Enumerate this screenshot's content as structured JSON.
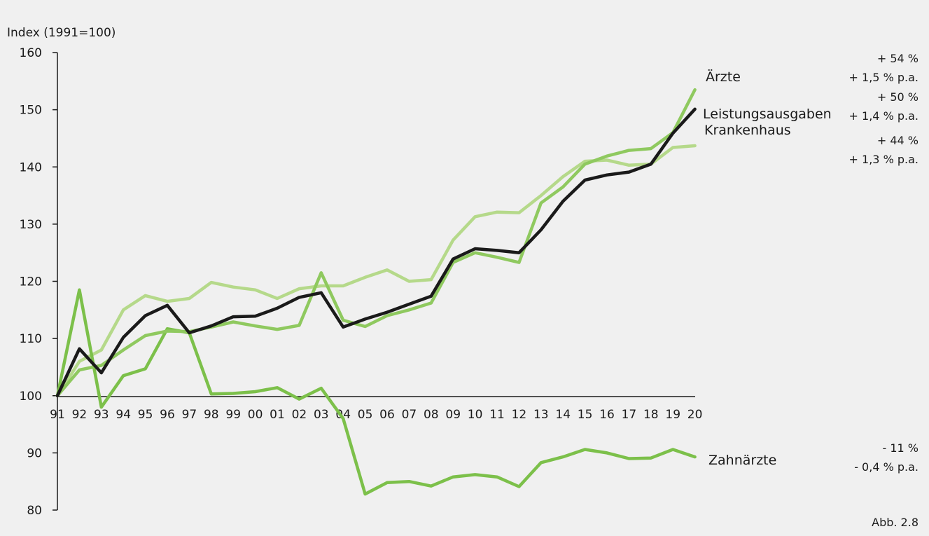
{
  "chart_data": {
    "type": "line",
    "ylabel": "Index (1991=100)",
    "ylim": [
      80,
      160
    ],
    "yticks": [
      80,
      90,
      100,
      110,
      120,
      130,
      140,
      150,
      160
    ],
    "categories": [
      "91",
      "92",
      "93",
      "94",
      "95",
      "96",
      "97",
      "98",
      "99",
      "00",
      "01",
      "02",
      "03",
      "04",
      "05",
      "06",
      "07",
      "08",
      "09",
      "10",
      "11",
      "12",
      "13",
      "14",
      "15",
      "16",
      "17",
      "18",
      "19",
      "20"
    ],
    "series": [
      {
        "name": "Krankenhaus",
        "color": "#b5d98a",
        "values": [
          100,
          106,
          108,
          115,
          117.5,
          116.5,
          117,
          119.8,
          119,
          118.5,
          117,
          118.7,
          119.2,
          119.2,
          120.7,
          122,
          120,
          120.3,
          127.2,
          131.3,
          132.1,
          132,
          135,
          138.3,
          141,
          141.2,
          140.3,
          140.5,
          143.4,
          143.7
        ]
      },
      {
        "name": "Zahnärzte",
        "color": "#7cc04a",
        "values": [
          100,
          118.5,
          98,
          103.5,
          104.7,
          111.7,
          111,
          100.3,
          100.4,
          100.7,
          101.4,
          99.4,
          101.3,
          96,
          82.8,
          84.8,
          85,
          84.2,
          85.8,
          86.2,
          85.8,
          84.1,
          88.3,
          89.3,
          90.6,
          90,
          89,
          89.1,
          90.6,
          89.3
        ]
      },
      {
        "name": "Ärzte",
        "color": "#8fc95f",
        "values": [
          100,
          104.5,
          105.3,
          108,
          110.5,
          111.3,
          111.2,
          112,
          112.9,
          112.2,
          111.6,
          112.3,
          121.5,
          113.2,
          112.1,
          114,
          115,
          116.2,
          123.3,
          125,
          124.2,
          123.3,
          133.7,
          136.5,
          140.5,
          141.9,
          142.9,
          143.2,
          146,
          153.5
        ]
      },
      {
        "name": "Leistungsausgaben",
        "color": "#1a1a1a",
        "values": [
          100,
          108.2,
          104,
          110.2,
          114,
          115.8,
          111,
          112.2,
          113.8,
          113.9,
          115.3,
          117.2,
          118,
          112,
          113.4,
          114.6,
          116,
          117.4,
          123.9,
          125.7,
          125.4,
          125,
          129,
          134,
          137.7,
          138.6,
          139.1,
          140.5,
          145.9,
          150.1
        ]
      }
    ],
    "annotations": {
      "aerzte": [
        "+ 54 %",
        "+ 1,5 % p.a."
      ],
      "leistungsausgaben": [
        "+ 50 %",
        "+ 1,4 % p.a."
      ],
      "krankenhaus": [
        "+ 44 %",
        "+ 1,3 % p.a."
      ],
      "zahnaerzte": [
        "- 11 %",
        "- 0,4 % p.a."
      ]
    },
    "figure_label": "Abb. 2.8",
    "grid": false,
    "legend": "inline-right"
  }
}
